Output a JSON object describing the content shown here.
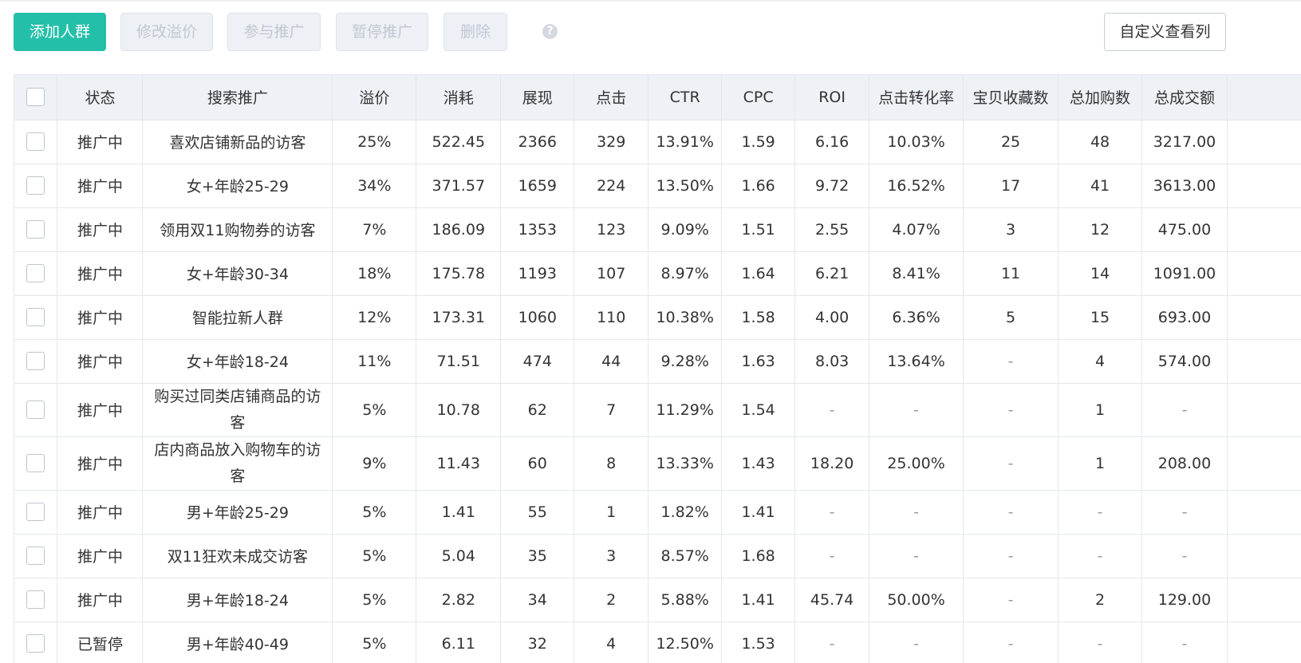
{
  "toolbar": {
    "add_label": "添加人群",
    "edit_label": "修改溢价",
    "join_label": "参与推广",
    "pause_label": "暂停推广",
    "delete_label": "删除",
    "help_glyph": "?",
    "custom_columns_label": "自定义查看列"
  },
  "colors": {
    "primary": "#23bfa9",
    "header_bg": "#eef1f6",
    "disabled_text": "#c0c7d2",
    "border": "#e3e7ec"
  },
  "table": {
    "headers": [
      "状态",
      "搜索推广",
      "溢价",
      "消耗",
      "展现",
      "点击",
      "CTR",
      "CPC",
      "ROI",
      "点击转化率",
      "宝贝收藏数",
      "总加购数",
      "总成交额"
    ],
    "rows": [
      [
        "推广中",
        "喜欢店铺新品的访客",
        "25%",
        "522.45",
        "2366",
        "329",
        "13.91%",
        "1.59",
        "6.16",
        "10.03%",
        "25",
        "48",
        "3217.00"
      ],
      [
        "推广中",
        "女+年龄25-29",
        "34%",
        "371.57",
        "1659",
        "224",
        "13.50%",
        "1.66",
        "9.72",
        "16.52%",
        "17",
        "41",
        "3613.00"
      ],
      [
        "推广中",
        "领用双11购物券的访客",
        "7%",
        "186.09",
        "1353",
        "123",
        "9.09%",
        "1.51",
        "2.55",
        "4.07%",
        "3",
        "12",
        "475.00"
      ],
      [
        "推广中",
        "女+年龄30-34",
        "18%",
        "175.78",
        "1193",
        "107",
        "8.97%",
        "1.64",
        "6.21",
        "8.41%",
        "11",
        "14",
        "1091.00"
      ],
      [
        "推广中",
        "智能拉新人群",
        "12%",
        "173.31",
        "1060",
        "110",
        "10.38%",
        "1.58",
        "4.00",
        "6.36%",
        "5",
        "15",
        "693.00"
      ],
      [
        "推广中",
        "女+年龄18-24",
        "11%",
        "71.51",
        "474",
        "44",
        "9.28%",
        "1.63",
        "8.03",
        "13.64%",
        "-",
        "4",
        "574.00"
      ],
      [
        "推广中",
        "购买过同类店铺商品的访客",
        "5%",
        "10.78",
        "62",
        "7",
        "11.29%",
        "1.54",
        "-",
        "-",
        "-",
        "1",
        "-"
      ],
      [
        "推广中",
        "店内商品放入购物车的访客",
        "9%",
        "11.43",
        "60",
        "8",
        "13.33%",
        "1.43",
        "18.20",
        "25.00%",
        "-",
        "1",
        "208.00"
      ],
      [
        "推广中",
        "男+年龄25-29",
        "5%",
        "1.41",
        "55",
        "1",
        "1.82%",
        "1.41",
        "-",
        "-",
        "-",
        "-",
        "-"
      ],
      [
        "推广中",
        "双11狂欢未成交访客",
        "5%",
        "5.04",
        "35",
        "3",
        "8.57%",
        "1.68",
        "-",
        "-",
        "-",
        "-",
        "-"
      ],
      [
        "推广中",
        "男+年龄18-24",
        "5%",
        "2.82",
        "34",
        "2",
        "5.88%",
        "1.41",
        "45.74",
        "50.00%",
        "-",
        "2",
        "129.00"
      ],
      [
        "已暂停",
        "男+年龄40-49",
        "5%",
        "6.11",
        "32",
        "4",
        "12.50%",
        "1.53",
        "-",
        "-",
        "-",
        "-",
        "-"
      ]
    ]
  }
}
